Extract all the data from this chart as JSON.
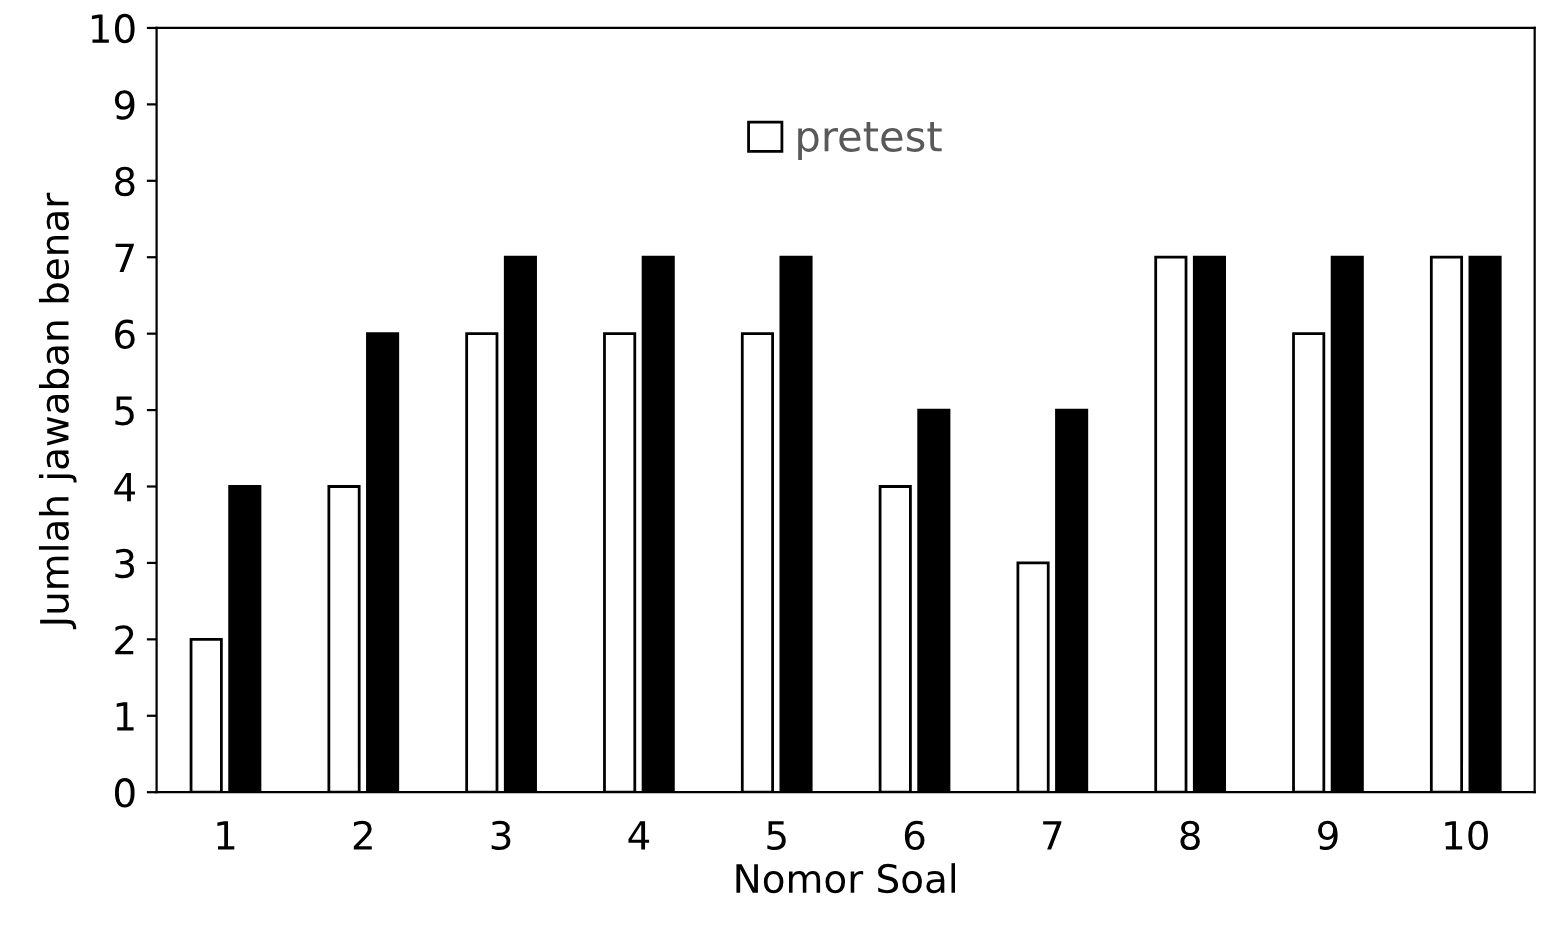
{
  "chart_data": {
    "type": "bar",
    "xlabel": "Nomor Soal",
    "ylabel": "Jumlah jawaban benar",
    "categories": [
      "1",
      "2",
      "3",
      "4",
      "5",
      "6",
      "7",
      "8",
      "9",
      "10"
    ],
    "series": [
      {
        "name": "pretest",
        "color": "#ffffff",
        "values": [
          2,
          4,
          6,
          6,
          6,
          4,
          3,
          7,
          6,
          7
        ]
      },
      {
        "color": "#000000",
        "values": [
          4,
          6,
          7,
          7,
          7,
          5,
          5,
          7,
          7,
          7
        ]
      }
    ],
    "ylim": [
      0,
      10
    ],
    "yticks": [
      0,
      1,
      2,
      3,
      4,
      5,
      6,
      7,
      8,
      9,
      10
    ],
    "grid": false,
    "legend": "top"
  }
}
